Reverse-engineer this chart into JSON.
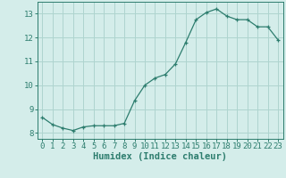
{
  "x": [
    0,
    1,
    2,
    3,
    4,
    5,
    6,
    7,
    8,
    9,
    10,
    11,
    12,
    13,
    14,
    15,
    16,
    17,
    18,
    19,
    20,
    21,
    22,
    23
  ],
  "y": [
    8.65,
    8.35,
    8.2,
    8.1,
    8.25,
    8.3,
    8.3,
    8.3,
    8.4,
    9.35,
    10.0,
    10.3,
    10.45,
    10.9,
    11.8,
    12.75,
    13.05,
    13.2,
    12.9,
    12.75,
    12.75,
    12.45,
    12.45,
    11.9
  ],
  "line_color": "#2d7d6e",
  "marker": "+",
  "bg_color": "#d4edea",
  "grid_color": "#aed4cf",
  "axis_color": "#2d7d6e",
  "text_color": "#2d7d6e",
  "xlabel": "Humidex (Indice chaleur)",
  "xlim": [
    -0.5,
    23.5
  ],
  "ylim": [
    7.75,
    13.5
  ],
  "yticks": [
    8,
    9,
    10,
    11,
    12,
    13
  ],
  "xticks": [
    0,
    1,
    2,
    3,
    4,
    5,
    6,
    7,
    8,
    9,
    10,
    11,
    12,
    13,
    14,
    15,
    16,
    17,
    18,
    19,
    20,
    21,
    22,
    23
  ],
  "tick_fontsize": 6.5,
  "xlabel_fontsize": 7.5
}
